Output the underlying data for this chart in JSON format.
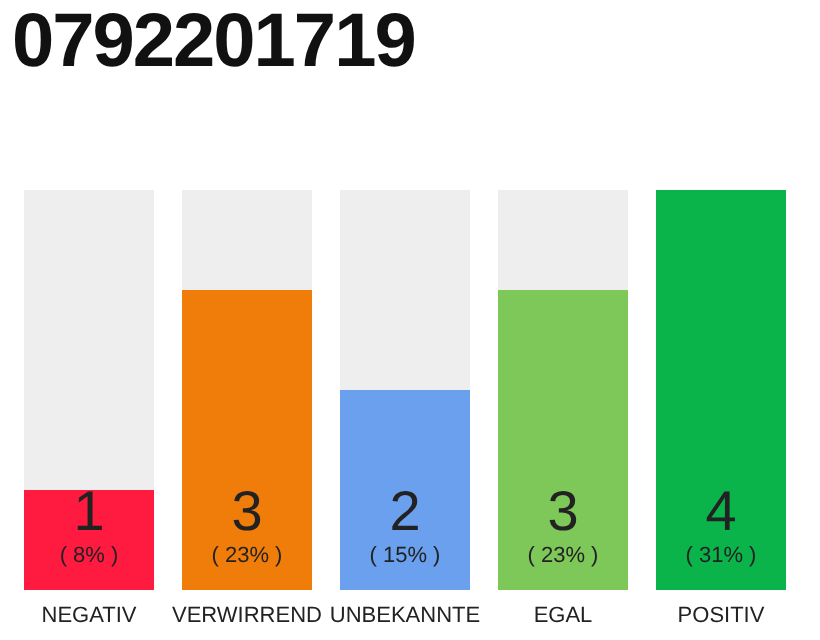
{
  "chart_data": {
    "type": "bar",
    "title": "0792201719",
    "categories": [
      "NEGATIV",
      "VERWIRREND",
      "UNBEKANNTE",
      "EGAL",
      "POSITIV"
    ],
    "values": [
      1,
      3,
      2,
      3,
      4
    ],
    "colors": [
      "#ff1a40",
      "#f07d0a",
      "#6aa0ee",
      "#7ec85a",
      "#0bb44a"
    ],
    "value_labels": [
      "1\n( 8% )",
      "3\n( 23% )",
      "2\n( 15% )",
      "3\n( 23% )",
      "4\n( 31% )"
    ]
  }
}
